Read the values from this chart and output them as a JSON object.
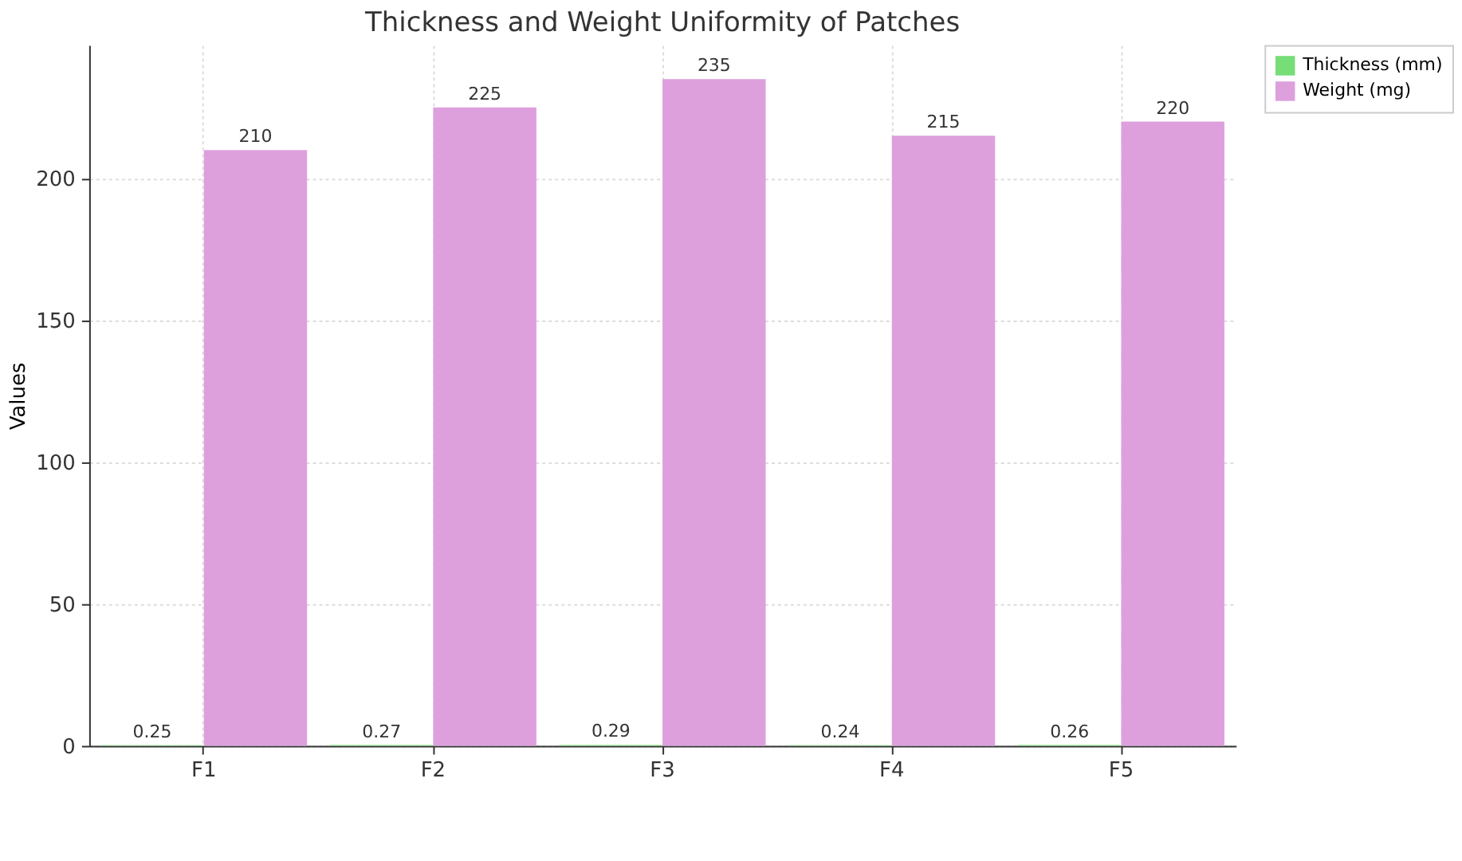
{
  "chart_data": {
    "type": "bar",
    "title": "Thickness and Weight Uniformity of Patches",
    "ylabel": "Values",
    "categories": [
      "F1",
      "F2",
      "F3",
      "F4",
      "F5"
    ],
    "series": [
      {
        "name": "Thickness (mm)",
        "color": "#77dd77",
        "values": [
          0.25,
          0.27,
          0.29,
          0.24,
          0.26
        ]
      },
      {
        "name": "Weight (mg)",
        "color": "#dda0dd",
        "values": [
          210,
          225,
          235,
          215,
          220
        ]
      }
    ],
    "ylim": [
      0,
      247
    ],
    "yticks": [
      0,
      50,
      100,
      150,
      200
    ],
    "grid": true,
    "legend": "top right",
    "data_labels": true
  }
}
